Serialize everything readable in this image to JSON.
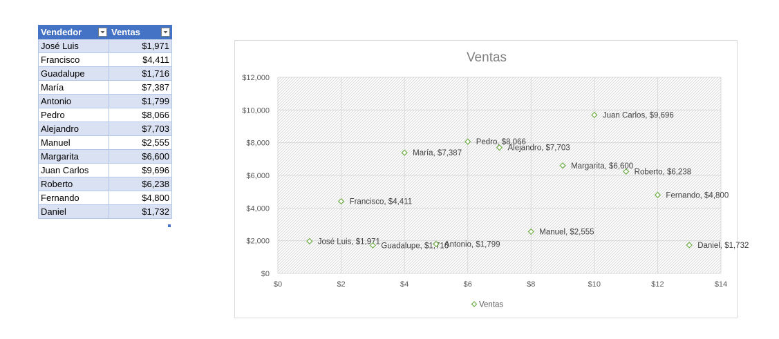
{
  "table": {
    "headers": [
      "Vendedor",
      "Ventas"
    ],
    "rows": [
      {
        "name": "José Luis",
        "value": "$1,971"
      },
      {
        "name": "Francisco",
        "value": "$4,411"
      },
      {
        "name": "Guadalupe",
        "value": "$1,716"
      },
      {
        "name": "María",
        "value": "$7,387"
      },
      {
        "name": "Antonio",
        "value": "$1,799"
      },
      {
        "name": "Pedro",
        "value": "$8,066"
      },
      {
        "name": "Alejandro",
        "value": "$7,703"
      },
      {
        "name": "Manuel",
        "value": "$2,555"
      },
      {
        "name": "Margarita",
        "value": "$6,600"
      },
      {
        "name": "Juan Carlos",
        "value": "$9,696"
      },
      {
        "name": "Roberto",
        "value": "$6,238"
      },
      {
        "name": "Fernando",
        "value": "$4,800"
      },
      {
        "name": "Daniel",
        "value": "$1,732"
      }
    ],
    "colors": {
      "header": "#4472c4",
      "band": "#d9e1f2"
    },
    "icons": [
      "filter-dropdown-icon"
    ]
  },
  "chart_data": {
    "type": "scatter",
    "title": "Ventas",
    "xlabel": "",
    "ylabel": "",
    "xlim": [
      0,
      14
    ],
    "ylim": [
      0,
      12000
    ],
    "x_ticks": [
      "$0",
      "$2",
      "$4",
      "$6",
      "$8",
      "$10",
      "$12",
      "$14"
    ],
    "y_ticks": [
      "$0",
      "$2,000",
      "$4,000",
      "$6,000",
      "$8,000",
      "$10,000",
      "$12,000"
    ],
    "grid": true,
    "legend": "bottom",
    "marker": "diamond",
    "marker_color": "#70ad47",
    "series": [
      {
        "name": "Ventas",
        "points": [
          {
            "x": 1,
            "y": 1971,
            "label": "José Luis, $1,971"
          },
          {
            "x": 2,
            "y": 4411,
            "label": "Francisco, $4,411"
          },
          {
            "x": 3,
            "y": 1716,
            "label": "Guadalupe, $1,716"
          },
          {
            "x": 4,
            "y": 7387,
            "label": "María, $7,387"
          },
          {
            "x": 5,
            "y": 1799,
            "label": "Antonio, $1,799"
          },
          {
            "x": 6,
            "y": 8066,
            "label": "Pedro, $8,066"
          },
          {
            "x": 7,
            "y": 7703,
            "label": "Alejandro, $7,703"
          },
          {
            "x": 8,
            "y": 2555,
            "label": "Manuel, $2,555"
          },
          {
            "x": 9,
            "y": 6600,
            "label": "Margarita, $6,600"
          },
          {
            "x": 10,
            "y": 9696,
            "label": "Juan Carlos, $9,696"
          },
          {
            "x": 11,
            "y": 6238,
            "label": "Roberto, $6,238"
          },
          {
            "x": 12,
            "y": 4800,
            "label": "Fernando, $4,800"
          },
          {
            "x": 13,
            "y": 1732,
            "label": "Daniel, $1,732"
          }
        ]
      }
    ]
  }
}
